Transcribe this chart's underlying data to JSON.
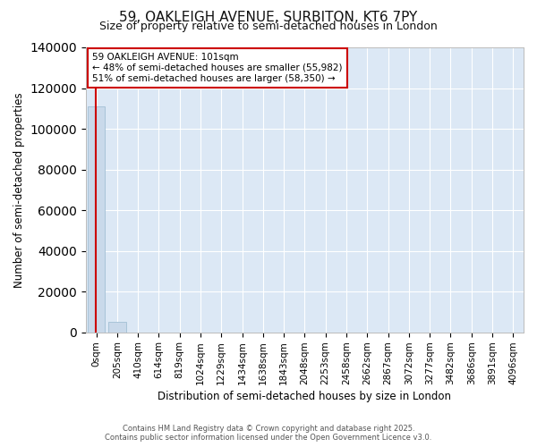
{
  "title_line1": "59, OAKLEIGH AVENUE, SURBITON, KT6 7PY",
  "title_line2": "Size of property relative to semi-detached houses in London",
  "xlabel": "Distribution of semi-detached houses by size in London",
  "ylabel": "Number of semi-detached properties",
  "bar_labels": [
    "0sqm",
    "205sqm",
    "410sqm",
    "614sqm",
    "819sqm",
    "1024sqm",
    "1229sqm",
    "1434sqm",
    "1638sqm",
    "1843sqm",
    "2048sqm",
    "2253sqm",
    "2458sqm",
    "2662sqm",
    "2867sqm",
    "3072sqm",
    "3277sqm",
    "3482sqm",
    "3686sqm",
    "3891sqm",
    "4096sqm"
  ],
  "bar_values": [
    111000,
    5200,
    0,
    0,
    0,
    0,
    0,
    0,
    0,
    0,
    0,
    0,
    0,
    0,
    0,
    0,
    0,
    0,
    0,
    0,
    0
  ],
  "bar_color": "#c9d9ea",
  "bar_edgecolor": "#a8c4d8",
  "property_line_color": "#cc0000",
  "annotation_text": "59 OAKLEIGH AVENUE: 101sqm\n← 48% of semi-detached houses are smaller (55,982)\n51% of semi-detached houses are larger (58,350) →",
  "annotation_box_facecolor": "#ffffff",
  "annotation_box_edgecolor": "#cc0000",
  "ylim": [
    0,
    140000
  ],
  "yticks": [
    0,
    20000,
    40000,
    60000,
    80000,
    100000,
    120000,
    140000
  ],
  "plot_bg_color": "#dce8f5",
  "grid_color": "#ffffff",
  "fig_bg_color": "#ffffff",
  "footer_line1": "Contains HM Land Registry data © Crown copyright and database right 2025.",
  "footer_line2": "Contains public sector information licensed under the Open Government Licence v3.0."
}
